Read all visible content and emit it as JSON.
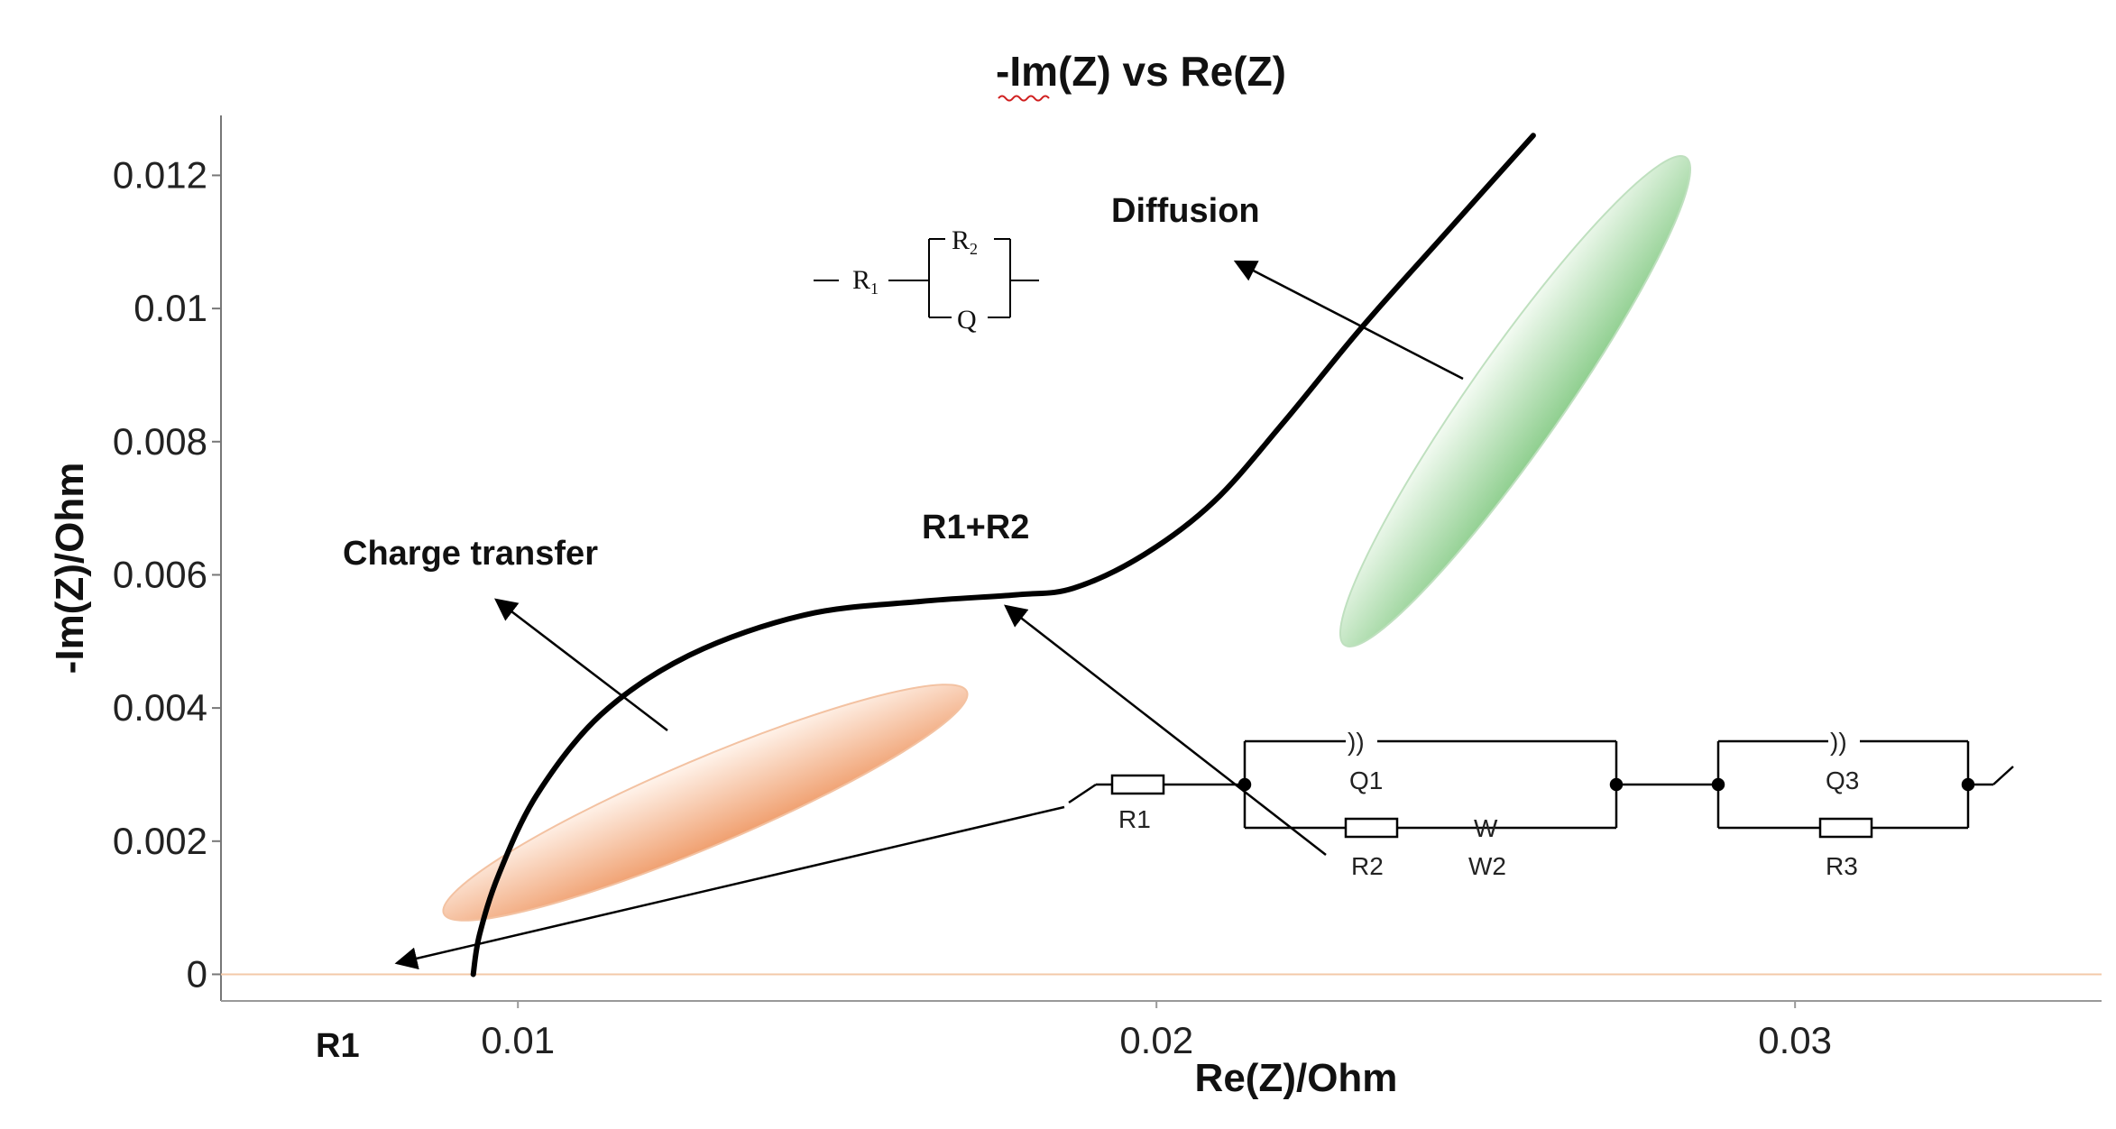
{
  "chart_data": {
    "type": "line",
    "title": "-Im(Z) vs Re(Z)",
    "xlabel": "Re(Z)/Ohm",
    "ylabel": "-Im(Z)/Ohm",
    "xlim": [
      0.00535,
      0.0348
    ],
    "ylim": [
      -0.0004,
      0.0129
    ],
    "x_ticks": [
      {
        "value": 0.01,
        "label": "0.01"
      },
      {
        "value": 0.02,
        "label": "0.02"
      },
      {
        "value": 0.03,
        "label": "0.03"
      }
    ],
    "y_ticks": [
      {
        "value": 0,
        "label": "0"
      },
      {
        "value": 0.002,
        "label": "0.002"
      },
      {
        "value": 0.004,
        "label": "0.004"
      },
      {
        "value": 0.006,
        "label": "0.006"
      },
      {
        "value": 0.008,
        "label": "0.008"
      },
      {
        "value": 0.01,
        "label": "0.01"
      },
      {
        "value": 0.012,
        "label": "0.012"
      }
    ],
    "grid": false,
    "legend": "none",
    "series": [
      {
        "color": "#000000",
        "points": [
          [
            0.0093,
            0.0
          ],
          [
            0.0094,
            0.0006
          ],
          [
            0.0097,
            0.0015
          ],
          [
            0.0103,
            0.0027
          ],
          [
            0.0113,
            0.0039
          ],
          [
            0.0127,
            0.0048
          ],
          [
            0.0145,
            0.0054
          ],
          [
            0.0163,
            0.0056
          ],
          [
            0.0178,
            0.0057
          ],
          [
            0.0187,
            0.0058
          ],
          [
            0.0198,
            0.0063
          ],
          [
            0.0209,
            0.0071
          ],
          [
            0.022,
            0.0083
          ],
          [
            0.0232,
            0.0097
          ],
          [
            0.0245,
            0.0111
          ],
          [
            0.0259,
            0.0126
          ]
        ]
      }
    ],
    "annotations": [
      {
        "text": "Diffusion"
      },
      {
        "text": "Charge transfer"
      },
      {
        "text": "R1+R2"
      },
      {
        "text": "R1"
      }
    ],
    "colors": {
      "diffusion_region": "#8fcf8f",
      "charge_transfer_region": "#f0a070",
      "baseline": "#f3c9a8",
      "curve": "#000000"
    }
  },
  "circuit_small": {
    "r1": "R",
    "r1_sub": "1",
    "r2": "R",
    "r2_sub": "2",
    "q": "Q"
  },
  "circuit_large": {
    "r1": "R1",
    "q1": "Q1",
    "r2": "R2",
    "w2": "W2",
    "w": "W",
    "q3": "Q3",
    "r3": "R3",
    "q_symbol": "))"
  }
}
